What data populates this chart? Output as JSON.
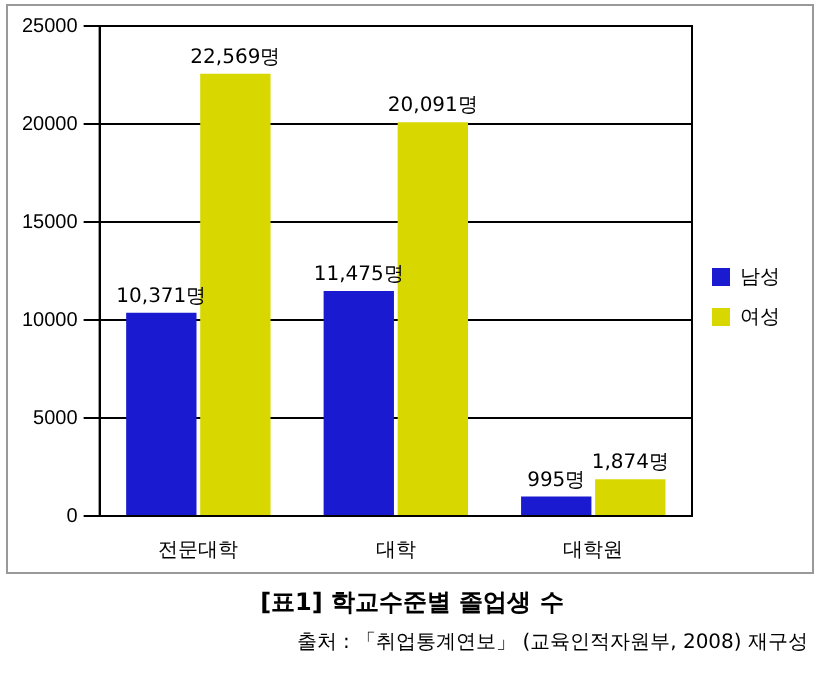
{
  "chart_data": {
    "type": "bar",
    "title": "[표1] 학교수준별 졸업생 수",
    "annotations": [
      "출처 : 「취업통계연보」 (교육인적자원부, 2008) 재구성"
    ],
    "categories": [
      "전문대학",
      "대학",
      "대학원"
    ],
    "series": [
      {
        "name": "남성",
        "color": "#1a1ad0",
        "values": [
          10371,
          11475,
          995
        ],
        "value_labels": [
          "10,371명",
          "11,475명",
          "995명"
        ]
      },
      {
        "name": "여성",
        "color": "#d8d800",
        "values": [
          22569,
          20091,
          1874
        ],
        "value_labels": [
          "22,569명",
          "20,091명",
          "1,874명"
        ]
      }
    ],
    "ylim": [
      0,
      25000
    ],
    "yticks": [
      0,
      5000,
      10000,
      15000,
      20000,
      25000
    ],
    "grid": "y",
    "legend": "right"
  }
}
